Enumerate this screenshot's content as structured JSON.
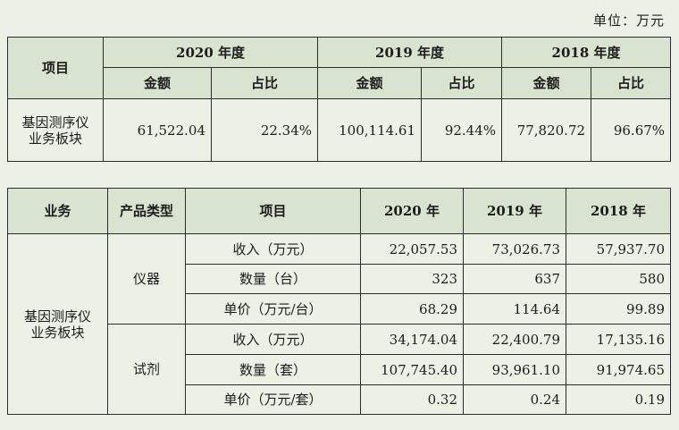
{
  "unit_label": "单位：万元",
  "table1": {
    "header_item": "项目",
    "years": [
      "2020 年度",
      "2019 年度",
      "2018 年度"
    ],
    "amount_label": "金额",
    "ratio_label": "占比",
    "row": {
      "name": "基因测序仪业务板块",
      "cells": [
        "61,522.04",
        "22.34%",
        "100,114.61",
        "92.44%",
        "77,820.72",
        "96.67%"
      ]
    }
  },
  "table2": {
    "headers": {
      "business": "业务",
      "product_type": "产品类型",
      "item": "项目",
      "years": [
        "2020 年",
        "2019 年",
        "2018 年"
      ]
    },
    "business": "基因测序仪业务板块",
    "groups": [
      {
        "type": "仪器",
        "rows": [
          {
            "item": "收入（万元）",
            "values": [
              "22,057.53",
              "73,026.73",
              "57,937.70"
            ]
          },
          {
            "item": "数量（台）",
            "values": [
              "323",
              "637",
              "580"
            ]
          },
          {
            "item": "单价（万元/台）",
            "values": [
              "68.29",
              "114.64",
              "99.89"
            ]
          }
        ]
      },
      {
        "type": "试剂",
        "rows": [
          {
            "item": "收入（万元）",
            "values": [
              "34,174.04",
              "22,400.79",
              "17,135.16"
            ]
          },
          {
            "item": "数量（套）",
            "values": [
              "107,745.40",
              "93,961.10",
              "91,974.65"
            ]
          },
          {
            "item": "单价（万元/套）",
            "values": [
              "0.32",
              "0.24",
              "0.19"
            ]
          }
        ]
      }
    ]
  }
}
